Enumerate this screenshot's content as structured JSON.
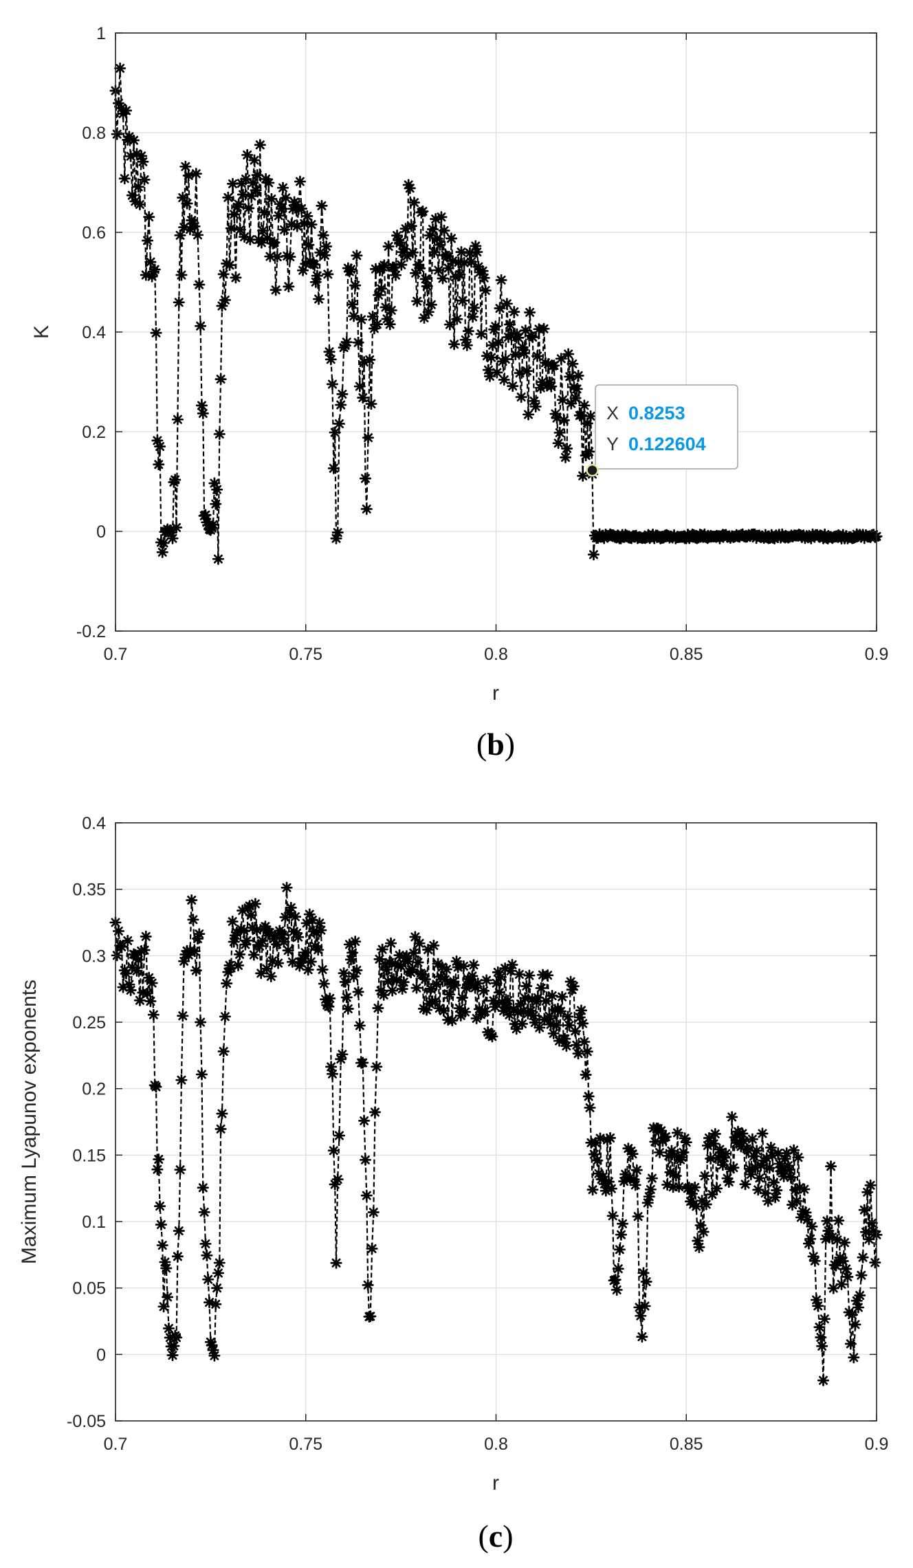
{
  "colors": {
    "series": "#000000",
    "grid": "#dcdcdc",
    "axis": "#262626",
    "datatip_value": "#0a97e6",
    "datatip_border": "#a0a0a0"
  },
  "chart_data": [
    {
      "panel_label": "b",
      "type": "scatter",
      "marker": "asterisk",
      "line_style": "dashed",
      "xlabel": "r",
      "ylabel": "K",
      "xlim": [
        0.7,
        0.9
      ],
      "ylim": [
        -0.2,
        1
      ],
      "xticks": [
        "0.7",
        "0.75",
        "0.8",
        "0.85",
        "0.9"
      ],
      "yticks": [
        "-0.2",
        "0",
        "0.2",
        "0.4",
        "0.6",
        "0.8",
        "1"
      ],
      "grid": true,
      "datatip": {
        "x_key": "X",
        "x": "0.8253",
        "y_key": "Y",
        "y": "0.122604"
      },
      "series": [
        {
          "x": [
            0.7,
            0.702,
            0.704,
            0.706,
            0.708,
            0.71,
            0.711,
            0.712,
            0.713,
            0.714,
            0.715,
            0.716,
            0.717,
            0.718,
            0.72,
            0.722,
            0.723,
            0.724,
            0.725,
            0.726,
            0.727,
            0.728,
            0.73,
            0.732,
            0.735,
            0.738,
            0.741,
            0.744,
            0.747,
            0.75,
            0.753,
            0.755,
            0.757,
            0.758,
            0.76,
            0.763,
            0.765,
            0.766,
            0.768,
            0.771,
            0.774,
            0.777,
            0.78,
            0.783,
            0.786,
            0.789,
            0.792,
            0.795,
            0.798,
            0.801,
            0.804,
            0.807,
            0.81,
            0.813,
            0.816,
            0.819,
            0.822,
            0.824,
            0.8253,
            0.826,
            0.83,
            0.84,
            0.85,
            0.86,
            0.87,
            0.88,
            0.89,
            0.9
          ],
          "y": [
            0.85,
            0.8,
            0.7,
            0.75,
            0.6,
            0.55,
            0.2,
            0.05,
            0.0,
            0.0,
            0.0,
            0.05,
            0.55,
            0.7,
            0.65,
            0.6,
            0.2,
            0.02,
            0.0,
            0.02,
            0.05,
            0.45,
            0.6,
            0.62,
            0.65,
            0.68,
            0.6,
            0.58,
            0.62,
            0.6,
            0.55,
            0.55,
            0.3,
            0.02,
            0.45,
            0.5,
            0.3,
            0.1,
            0.45,
            0.5,
            0.55,
            0.6,
            0.55,
            0.5,
            0.55,
            0.48,
            0.45,
            0.5,
            0.4,
            0.42,
            0.38,
            0.35,
            0.32,
            0.3,
            0.28,
            0.25,
            0.2,
            0.18,
            0.122604,
            -0.01,
            -0.01,
            -0.01,
            -0.01,
            -0.01,
            -0.01,
            -0.01,
            -0.01,
            -0.01
          ]
        }
      ]
    },
    {
      "panel_label": "c",
      "type": "scatter",
      "marker": "asterisk",
      "line_style": "dashed",
      "xlabel": "r",
      "ylabel": "Maximum Lyapunov exponents",
      "xlim": [
        0.7,
        0.9
      ],
      "ylim": [
        -0.05,
        0.4
      ],
      "xticks": [
        "0.7",
        "0.75",
        "0.8",
        "0.85",
        "0.9"
      ],
      "yticks": [
        "-0.05",
        "0",
        "0.05",
        "0.1",
        "0.15",
        "0.2",
        "0.25",
        "0.3",
        "0.35",
        "0.4"
      ],
      "grid": true,
      "series": [
        {
          "x": [
            0.7,
            0.702,
            0.704,
            0.706,
            0.708,
            0.71,
            0.711,
            0.712,
            0.713,
            0.714,
            0.715,
            0.716,
            0.717,
            0.718,
            0.72,
            0.722,
            0.723,
            0.724,
            0.725,
            0.726,
            0.727,
            0.728,
            0.73,
            0.733,
            0.736,
            0.739,
            0.742,
            0.745,
            0.748,
            0.751,
            0.754,
            0.756,
            0.757,
            0.758,
            0.76,
            0.763,
            0.765,
            0.766,
            0.767,
            0.769,
            0.772,
            0.775,
            0.778,
            0.781,
            0.784,
            0.787,
            0.79,
            0.793,
            0.796,
            0.799,
            0.802,
            0.805,
            0.808,
            0.811,
            0.814,
            0.817,
            0.82,
            0.822,
            0.824,
            0.825,
            0.827,
            0.83,
            0.831,
            0.834,
            0.837,
            0.838,
            0.841,
            0.845,
            0.85,
            0.853,
            0.856,
            0.86,
            0.864,
            0.867,
            0.87,
            0.873,
            0.876,
            0.879,
            0.881,
            0.883,
            0.885,
            0.886,
            0.887,
            0.888,
            0.889,
            0.89,
            0.892,
            0.894,
            0.896,
            0.898,
            0.9
          ],
          "y": [
            0.32,
            0.3,
            0.29,
            0.28,
            0.3,
            0.25,
            0.15,
            0.08,
            0.05,
            0.02,
            0.0,
            0.02,
            0.15,
            0.3,
            0.32,
            0.3,
            0.15,
            0.05,
            0.01,
            0.0,
            0.04,
            0.2,
            0.3,
            0.31,
            0.32,
            0.3,
            0.31,
            0.33,
            0.3,
            0.31,
            0.3,
            0.28,
            0.2,
            0.08,
            0.28,
            0.29,
            0.2,
            0.1,
            0.03,
            0.28,
            0.3,
            0.29,
            0.3,
            0.28,
            0.29,
            0.27,
            0.28,
            0.27,
            0.28,
            0.26,
            0.28,
            0.27,
            0.26,
            0.27,
            0.26,
            0.25,
            0.26,
            0.24,
            0.22,
            0.15,
            0.14,
            0.15,
            0.05,
            0.14,
            0.15,
            0.01,
            0.145,
            0.15,
            0.14,
            0.09,
            0.14,
            0.15,
            0.16,
            0.14,
            0.15,
            0.13,
            0.14,
            0.13,
            0.11,
            0.08,
            0.02,
            0.0,
            0.1,
            0.12,
            0.05,
            0.08,
            0.06,
            0.0,
            0.08,
            0.11,
            0.09
          ]
        }
      ]
    }
  ]
}
